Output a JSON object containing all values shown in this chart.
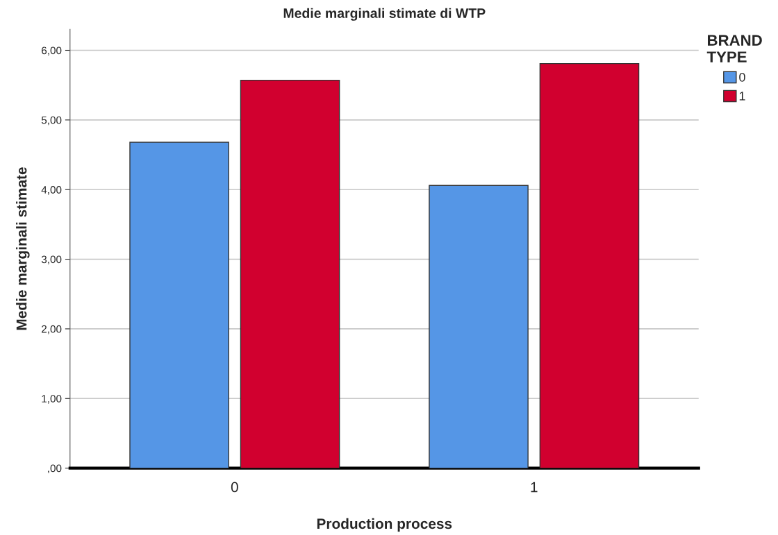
{
  "chart_data": {
    "type": "bar",
    "title": "Medie marginali stimate di WTP",
    "xlabel": "Production process",
    "ylabel": "Medie marginali stimate",
    "legend_title": "BRAND\nTYPE",
    "categories": [
      "0",
      "1"
    ],
    "series": [
      {
        "name": "0",
        "color": "#5596e6",
        "values": [
          4.68,
          4.06
        ]
      },
      {
        "name": "1",
        "color": "#d1002f",
        "values": [
          5.57,
          5.81
        ]
      }
    ],
    "ylim": [
      0,
      6.3
    ],
    "yticks": [
      {
        "value": 0,
        "label": ",00"
      },
      {
        "value": 1,
        "label": "1,00"
      },
      {
        "value": 2,
        "label": "2,00"
      },
      {
        "value": 3,
        "label": "3,00"
      },
      {
        "value": 4,
        "label": "4,00"
      },
      {
        "value": 5,
        "label": "5,00"
      },
      {
        "value": 6,
        "label": "6,00"
      }
    ],
    "grid": "y",
    "legend": "top right"
  }
}
